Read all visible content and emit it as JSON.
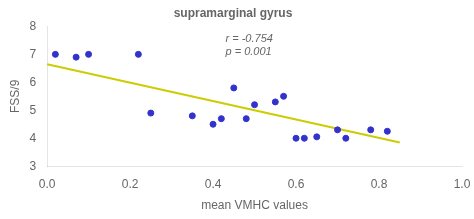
{
  "chart_data": {
    "type": "scatter",
    "title": "supramarginal gyrus",
    "xlabel": "mean VMHC values",
    "ylabel": "FSS/9",
    "series": [
      {
        "type": "scatter",
        "color": "#3333cc",
        "x": [
          0.02,
          0.07,
          0.1,
          0.22,
          0.25,
          0.35,
          0.4,
          0.42,
          0.45,
          0.48,
          0.5,
          0.55,
          0.57,
          0.6,
          0.62,
          0.65,
          0.7,
          0.72,
          0.78,
          0.82
        ],
        "values": [
          7.0,
          6.9,
          7.0,
          7.0,
          4.9,
          4.8,
          4.5,
          4.7,
          5.8,
          4.7,
          5.2,
          5.3,
          5.5,
          4.0,
          4.0,
          4.05,
          4.3,
          4.0,
          4.3,
          4.25
        ]
      },
      {
        "type": "line",
        "color": "#cccc00",
        "x": [
          0.0,
          0.85
        ],
        "values": [
          6.65,
          3.85
        ]
      }
    ],
    "annotations": [
      {
        "text": "r = -0.754\np = 0.001",
        "x": 0.43,
        "y": 7.75
      }
    ],
    "xlim": [
      0,
      1
    ],
    "xticks": [
      {
        "value": 0,
        "label": "0.0"
      },
      0.2,
      0.4,
      0.6,
      0.8,
      {
        "value": 1,
        "label": "1.0"
      }
    ],
    "ylim": [
      3,
      8
    ],
    "yticks": [
      3,
      4,
      5,
      6,
      7,
      8
    ],
    "grid": false
  }
}
